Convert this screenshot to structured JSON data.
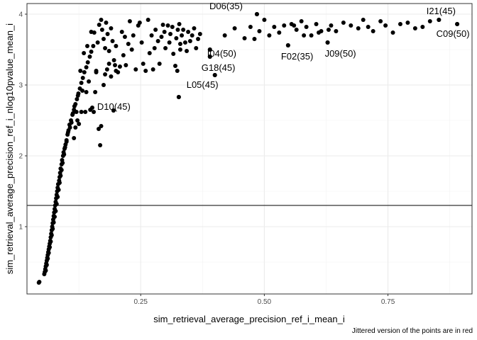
{
  "chart_data": {
    "type": "scatter",
    "xlabel": "sim_retrieval_average_precision_ref_i_mean_i",
    "ylabel": "sim_retrieval_average_precision_ref_i_nlog10pvalue_mean_i",
    "caption": "Jittered version of the points are in red",
    "xlim": [
      0.02,
      0.92
    ],
    "ylim": [
      0.05,
      4.15
    ],
    "x_ticks": [
      0.25,
      0.5,
      0.75
    ],
    "x_tick_labels": [
      "0.25",
      "0.50",
      "0.75"
    ],
    "y_ticks": [
      1,
      2,
      3,
      4
    ],
    "y_tick_labels": [
      "1",
      "2",
      "3",
      "4"
    ],
    "hline_y": 1.3,
    "grid": true,
    "point_color": "#000000",
    "labeled_points": [
      {
        "label": "D06(35)",
        "x": 0.485,
        "y": 4.0
      },
      {
        "label": "I21(45)",
        "x": 0.853,
        "y": 3.92
      },
      {
        "label": "C09(50)",
        "x": 0.89,
        "y": 3.86
      },
      {
        "label": "I04(50)",
        "x": 0.39,
        "y": 3.5
      },
      {
        "label": "F02(35)",
        "x": 0.548,
        "y": 3.56
      },
      {
        "label": "J09(50)",
        "x": 0.628,
        "y": 3.6
      },
      {
        "label": "G18(45)",
        "x": 0.39,
        "y": 3.4
      },
      {
        "label": "L05(45)",
        "x": 0.4,
        "y": 3.14
      },
      {
        "label": "D10(45)",
        "x": 0.327,
        "y": 2.83
      }
    ],
    "points": [
      [
        0.045,
        0.22
      ],
      [
        0.044,
        0.21
      ],
      [
        0.055,
        0.33
      ],
      [
        0.056,
        0.36
      ],
      [
        0.057,
        0.4
      ],
      [
        0.058,
        0.44
      ],
      [
        0.059,
        0.48
      ],
      [
        0.06,
        0.52
      ],
      [
        0.061,
        0.56
      ],
      [
        0.062,
        0.6
      ],
      [
        0.063,
        0.64
      ],
      [
        0.064,
        0.68
      ],
      [
        0.065,
        0.72
      ],
      [
        0.066,
        0.76
      ],
      [
        0.067,
        0.8
      ],
      [
        0.068,
        0.85
      ],
      [
        0.069,
        0.9
      ],
      [
        0.07,
        0.95
      ],
      [
        0.071,
        1.0
      ],
      [
        0.072,
        1.05
      ],
      [
        0.073,
        1.1
      ],
      [
        0.074,
        1.15
      ],
      [
        0.075,
        1.2
      ],
      [
        0.076,
        1.25
      ],
      [
        0.077,
        1.3
      ],
      [
        0.078,
        1.35
      ],
      [
        0.079,
        1.4
      ],
      [
        0.08,
        1.45
      ],
      [
        0.081,
        1.5
      ],
      [
        0.082,
        1.55
      ],
      [
        0.083,
        1.6
      ],
      [
        0.085,
        1.65
      ],
      [
        0.086,
        1.7
      ],
      [
        0.087,
        1.76
      ],
      [
        0.088,
        1.82
      ],
      [
        0.09,
        1.88
      ],
      [
        0.091,
        1.94
      ],
      [
        0.093,
        2.0
      ],
      [
        0.094,
        2.05
      ],
      [
        0.096,
        2.1
      ],
      [
        0.098,
        2.16
      ],
      [
        0.1,
        2.22
      ],
      [
        0.102,
        2.3
      ],
      [
        0.104,
        2.36
      ],
      [
        0.106,
        2.44
      ],
      [
        0.109,
        2.5
      ],
      [
        0.112,
        2.58
      ],
      [
        0.115,
        2.65
      ],
      [
        0.118,
        2.73
      ],
      [
        0.121,
        2.8
      ],
      [
        0.124,
        2.88
      ],
      [
        0.127,
        2.95
      ],
      [
        0.13,
        3.03
      ],
      [
        0.133,
        3.1
      ],
      [
        0.136,
        3.18
      ],
      [
        0.14,
        3.25
      ],
      [
        0.143,
        3.32
      ],
      [
        0.147,
        3.4
      ],
      [
        0.15,
        3.47
      ],
      [
        0.154,
        3.55
      ],
      [
        0.058,
        0.38
      ],
      [
        0.06,
        0.46
      ],
      [
        0.062,
        0.55
      ],
      [
        0.064,
        0.63
      ],
      [
        0.066,
        0.71
      ],
      [
        0.068,
        0.79
      ],
      [
        0.07,
        0.88
      ],
      [
        0.072,
        0.97
      ],
      [
        0.074,
        1.06
      ],
      [
        0.076,
        1.14
      ],
      [
        0.078,
        1.22
      ],
      [
        0.08,
        1.32
      ],
      [
        0.082,
        1.42
      ],
      [
        0.084,
        1.52
      ],
      [
        0.086,
        1.62
      ],
      [
        0.088,
        1.72
      ],
      [
        0.09,
        1.8
      ],
      [
        0.092,
        1.9
      ],
      [
        0.095,
        2.02
      ],
      [
        0.097,
        2.12
      ],
      [
        0.1,
        2.2
      ],
      [
        0.103,
        2.33
      ],
      [
        0.107,
        2.4
      ],
      [
        0.11,
        2.47
      ],
      [
        0.113,
        2.6
      ],
      [
        0.116,
        2.7
      ],
      [
        0.12,
        2.62
      ],
      [
        0.123,
        2.85
      ],
      [
        0.125,
        2.45
      ],
      [
        0.13,
        2.62
      ],
      [
        0.132,
        2.92
      ],
      [
        0.138,
        2.62
      ],
      [
        0.14,
        2.9
      ],
      [
        0.145,
        3.05
      ],
      [
        0.148,
        2.65
      ],
      [
        0.152,
        2.68
      ],
      [
        0.155,
        2.62
      ],
      [
        0.158,
        2.9
      ],
      [
        0.16,
        3.2
      ],
      [
        0.165,
        2.38
      ],
      [
        0.168,
        2.15
      ],
      [
        0.17,
        2.42
      ],
      [
        0.175,
        3.0
      ],
      [
        0.178,
        3.15
      ],
      [
        0.182,
        3.22
      ],
      [
        0.186,
        3.3
      ],
      [
        0.19,
        3.12
      ],
      [
        0.195,
        2.64
      ],
      [
        0.198,
        3.28
      ],
      [
        0.2,
        3.55
      ],
      [
        0.115,
        2.25
      ],
      [
        0.118,
        2.4
      ],
      [
        0.122,
        2.5
      ],
      [
        0.128,
        3.2
      ],
      [
        0.135,
        3.45
      ],
      [
        0.142,
        3.55
      ],
      [
        0.15,
        3.75
      ],
      [
        0.156,
        3.74
      ],
      [
        0.16,
        3.18
      ],
      [
        0.163,
        3.6
      ],
      [
        0.166,
        3.85
      ],
      [
        0.17,
        3.92
      ],
      [
        0.172,
        3.78
      ],
      [
        0.175,
        3.65
      ],
      [
        0.178,
        3.52
      ],
      [
        0.18,
        3.88
      ],
      [
        0.183,
        3.72
      ],
      [
        0.186,
        3.48
      ],
      [
        0.19,
        3.8
      ],
      [
        0.193,
        3.62
      ],
      [
        0.196,
        3.35
      ],
      [
        0.2,
        3.2
      ],
      [
        0.204,
        3.18
      ],
      [
        0.208,
        3.26
      ],
      [
        0.212,
        3.75
      ],
      [
        0.215,
        3.42
      ],
      [
        0.218,
        3.68
      ],
      [
        0.22,
        3.28
      ],
      [
        0.225,
        3.58
      ],
      [
        0.228,
        3.9
      ],
      [
        0.232,
        3.5
      ],
      [
        0.235,
        3.7
      ],
      [
        0.24,
        3.22
      ],
      [
        0.245,
        3.84
      ],
      [
        0.248,
        3.88
      ],
      [
        0.252,
        3.6
      ],
      [
        0.255,
        3.3
      ],
      [
        0.26,
        3.2
      ],
      [
        0.265,
        3.92
      ],
      [
        0.268,
        3.45
      ],
      [
        0.272,
        3.7
      ],
      [
        0.275,
        3.22
      ],
      [
        0.278,
        3.52
      ],
      [
        0.28,
        3.78
      ],
      [
        0.285,
        3.62
      ],
      [
        0.288,
        3.3
      ],
      [
        0.292,
        3.68
      ],
      [
        0.295,
        3.85
      ],
      [
        0.298,
        3.75
      ],
      [
        0.3,
        3.52
      ],
      [
        0.305,
        3.84
      ],
      [
        0.308,
        3.6
      ],
      [
        0.31,
        3.72
      ],
      [
        0.314,
        3.82
      ],
      [
        0.316,
        3.44
      ],
      [
        0.32,
        3.27
      ],
      [
        0.322,
        3.66
      ],
      [
        0.325,
        3.78
      ],
      [
        0.328,
        3.86
      ],
      [
        0.33,
        3.58
      ],
      [
        0.333,
        3.7
      ],
      [
        0.336,
        3.78
      ],
      [
        0.34,
        3.6
      ],
      [
        0.343,
        3.48
      ],
      [
        0.346,
        3.75
      ],
      [
        0.35,
        3.62
      ],
      [
        0.354,
        3.7
      ],
      [
        0.358,
        3.8
      ],
      [
        0.362,
        3.52
      ],
      [
        0.366,
        3.65
      ],
      [
        0.37,
        3.72
      ],
      [
        0.327,
        2.83
      ],
      [
        0.324,
        3.2
      ],
      [
        0.33,
        3.5
      ],
      [
        0.39,
        3.4
      ],
      [
        0.39,
        3.5
      ],
      [
        0.4,
        3.14
      ],
      [
        0.42,
        3.7
      ],
      [
        0.44,
        3.8
      ],
      [
        0.46,
        3.66
      ],
      [
        0.472,
        3.82
      ],
      [
        0.48,
        3.65
      ],
      [
        0.485,
        4.0
      ],
      [
        0.49,
        3.76
      ],
      [
        0.5,
        3.92
      ],
      [
        0.51,
        3.7
      ],
      [
        0.52,
        3.82
      ],
      [
        0.53,
        3.74
      ],
      [
        0.54,
        3.84
      ],
      [
        0.548,
        3.56
      ],
      [
        0.555,
        3.86
      ],
      [
        0.565,
        3.78
      ],
      [
        0.575,
        3.9
      ],
      [
        0.585,
        3.82
      ],
      [
        0.595,
        3.7
      ],
      [
        0.605,
        3.86
      ],
      [
        0.615,
        3.76
      ],
      [
        0.628,
        3.6
      ],
      [
        0.635,
        3.84
      ],
      [
        0.645,
        3.76
      ],
      [
        0.66,
        3.88
      ],
      [
        0.675,
        3.84
      ],
      [
        0.69,
        3.8
      ],
      [
        0.7,
        3.92
      ],
      [
        0.71,
        3.82
      ],
      [
        0.72,
        3.76
      ],
      [
        0.735,
        3.9
      ],
      [
        0.745,
        3.84
      ],
      [
        0.76,
        3.74
      ],
      [
        0.775,
        3.86
      ],
      [
        0.79,
        3.88
      ],
      [
        0.805,
        3.8
      ],
      [
        0.82,
        3.82
      ],
      [
        0.835,
        3.9
      ],
      [
        0.853,
        3.92
      ],
      [
        0.89,
        3.86
      ],
      [
        0.63,
        3.78
      ],
      [
        0.61,
        3.74
      ],
      [
        0.58,
        3.7
      ],
      [
        0.56,
        3.84
      ]
    ]
  }
}
